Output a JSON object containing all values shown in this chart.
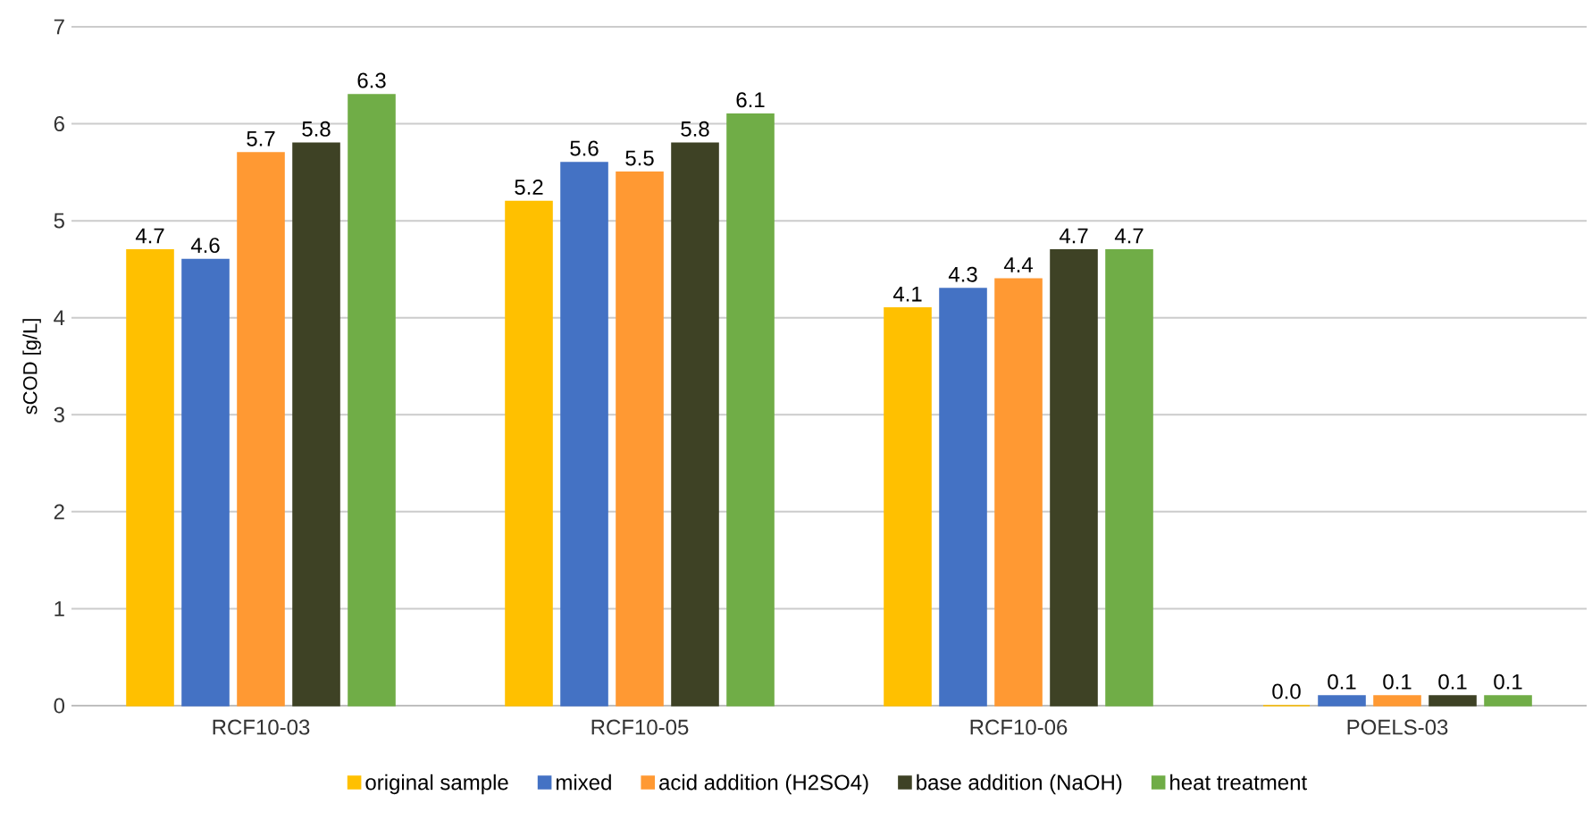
{
  "chart_data": {
    "type": "bar",
    "ylabel": "sCOD [g/L]",
    "categories": [
      "RCF10-03",
      "RCF10-05",
      "RCF10-06",
      "POELS-03"
    ],
    "series": [
      {
        "name": "original sample",
        "color": "#ffc000",
        "values": [
          4.7,
          5.2,
          4.1,
          0.0
        ],
        "value_labels": [
          "4.7",
          "5.2",
          "4.1",
          "0.0"
        ]
      },
      {
        "name": "mixed",
        "color": "#4472c4",
        "values": [
          4.6,
          5.6,
          4.3,
          0.1
        ],
        "value_labels": [
          "4.6",
          "5.6",
          "4.3",
          "0.1"
        ]
      },
      {
        "name": "acid addition (H2SO4)",
        "color": "#ff9933",
        "values": [
          5.7,
          5.5,
          4.4,
          0.1
        ],
        "value_labels": [
          "5.7",
          "5.5",
          "4.4",
          "0.1"
        ]
      },
      {
        "name": "base addition (NaOH)",
        "color": "#3e4225",
        "values": [
          5.8,
          5.8,
          4.7,
          0.1
        ],
        "value_labels": [
          "5.8",
          "5.8",
          "4.7",
          "0.1"
        ]
      },
      {
        "name": "heat treatment",
        "color": "#70ad47",
        "values": [
          6.3,
          6.1,
          4.7,
          0.1
        ],
        "value_labels": [
          "6.3",
          "6.1",
          "4.7",
          "0.1"
        ]
      }
    ],
    "ylim": [
      0,
      7
    ],
    "yticks": [
      0,
      1,
      2,
      3,
      4,
      5,
      6,
      7
    ],
    "grid": "y",
    "legend": "bottom"
  }
}
